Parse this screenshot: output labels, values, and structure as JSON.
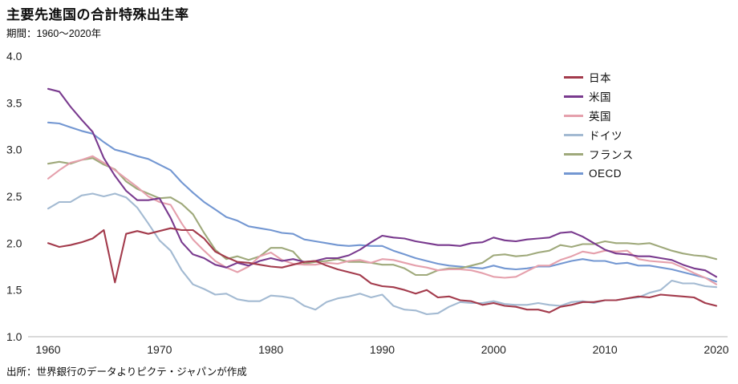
{
  "header": {
    "title": "主要先進国の合計特殊出生率",
    "subtitle": "期間：1960〜2020年"
  },
  "footer": {
    "source": "出所：世界銀行のデータよりピクテ・ジャパンが作成"
  },
  "chart_data": {
    "type": "line",
    "title": "主要先進国の合計特殊出生率",
    "period_label": "期間：1960〜2020年",
    "xlim": [
      1960,
      2020
    ],
    "ylim": [
      1.0,
      4.0
    ],
    "x_ticks": [
      1960,
      1970,
      1980,
      1990,
      2000,
      2010,
      2020
    ],
    "y_ticks": [
      1.0,
      1.5,
      2.0,
      2.5,
      3.0,
      3.5,
      4.0
    ],
    "grid": false,
    "legend_position": "top-right",
    "x": [
      1960,
      1961,
      1962,
      1963,
      1964,
      1965,
      1966,
      1967,
      1968,
      1969,
      1970,
      1971,
      1972,
      1973,
      1974,
      1975,
      1976,
      1977,
      1978,
      1979,
      1980,
      1981,
      1982,
      1983,
      1984,
      1985,
      1986,
      1987,
      1988,
      1989,
      1990,
      1991,
      1992,
      1993,
      1994,
      1995,
      1996,
      1997,
      1998,
      1999,
      2000,
      2001,
      2002,
      2003,
      2004,
      2005,
      2006,
      2007,
      2008,
      2009,
      2010,
      2011,
      2012,
      2013,
      2014,
      2015,
      2016,
      2017,
      2018,
      2019,
      2020
    ],
    "series": [
      {
        "key": "japan",
        "name": "日本",
        "color": "#a33b4c",
        "values": [
          2.0,
          1.96,
          1.98,
          2.01,
          2.05,
          2.14,
          1.58,
          2.1,
          2.13,
          2.1,
          2.13,
          2.16,
          2.14,
          2.14,
          2.05,
          1.91,
          1.85,
          1.8,
          1.79,
          1.77,
          1.75,
          1.74,
          1.77,
          1.8,
          1.81,
          1.76,
          1.72,
          1.69,
          1.66,
          1.57,
          1.54,
          1.53,
          1.5,
          1.46,
          1.5,
          1.42,
          1.43,
          1.39,
          1.38,
          1.34,
          1.36,
          1.33,
          1.32,
          1.29,
          1.29,
          1.26,
          1.32,
          1.34,
          1.37,
          1.37,
          1.39,
          1.39,
          1.41,
          1.43,
          1.42,
          1.45,
          1.44,
          1.43,
          1.42,
          1.36,
          1.33
        ]
      },
      {
        "key": "usa",
        "name": "米国",
        "color": "#793a8e",
        "values": [
          3.65,
          3.62,
          3.46,
          3.32,
          3.19,
          2.91,
          2.72,
          2.56,
          2.46,
          2.46,
          2.48,
          2.27,
          2.01,
          1.88,
          1.84,
          1.77,
          1.74,
          1.79,
          1.76,
          1.81,
          1.84,
          1.81,
          1.83,
          1.8,
          1.81,
          1.84,
          1.84,
          1.87,
          1.93,
          2.01,
          2.08,
          2.06,
          2.05,
          2.02,
          2.0,
          1.98,
          1.98,
          1.97,
          2.0,
          2.01,
          2.06,
          2.03,
          2.02,
          2.04,
          2.05,
          2.06,
          2.11,
          2.12,
          2.07,
          2.0,
          1.93,
          1.89,
          1.88,
          1.86,
          1.86,
          1.84,
          1.82,
          1.77,
          1.73,
          1.71,
          1.64
        ]
      },
      {
        "key": "uk",
        "name": "英国",
        "color": "#e5a0ac",
        "values": [
          2.69,
          2.78,
          2.86,
          2.89,
          2.93,
          2.86,
          2.78,
          2.69,
          2.6,
          2.5,
          2.44,
          2.41,
          2.21,
          2.04,
          1.92,
          1.81,
          1.74,
          1.69,
          1.75,
          1.86,
          1.9,
          1.82,
          1.78,
          1.77,
          1.77,
          1.79,
          1.78,
          1.81,
          1.82,
          1.79,
          1.83,
          1.82,
          1.79,
          1.76,
          1.74,
          1.71,
          1.72,
          1.72,
          1.71,
          1.68,
          1.64,
          1.63,
          1.64,
          1.7,
          1.76,
          1.76,
          1.82,
          1.86,
          1.91,
          1.89,
          1.92,
          1.91,
          1.92,
          1.83,
          1.81,
          1.8,
          1.79,
          1.74,
          1.68,
          1.63,
          1.56
        ]
      },
      {
        "key": "germany",
        "name": "ドイツ",
        "color": "#a3bad2",
        "values": [
          2.37,
          2.44,
          2.44,
          2.51,
          2.53,
          2.5,
          2.53,
          2.49,
          2.38,
          2.21,
          2.03,
          1.92,
          1.71,
          1.56,
          1.51,
          1.45,
          1.46,
          1.4,
          1.38,
          1.38,
          1.44,
          1.43,
          1.41,
          1.33,
          1.29,
          1.37,
          1.41,
          1.43,
          1.46,
          1.42,
          1.45,
          1.33,
          1.29,
          1.28,
          1.24,
          1.25,
          1.32,
          1.37,
          1.36,
          1.36,
          1.38,
          1.35,
          1.34,
          1.34,
          1.36,
          1.34,
          1.33,
          1.37,
          1.38,
          1.36,
          1.39,
          1.39,
          1.41,
          1.42,
          1.47,
          1.5,
          1.6,
          1.57,
          1.57,
          1.54,
          1.53
        ]
      },
      {
        "key": "france",
        "name": "フランス",
        "color": "#9fa97b",
        "values": [
          2.85,
          2.87,
          2.85,
          2.89,
          2.91,
          2.84,
          2.79,
          2.66,
          2.58,
          2.53,
          2.48,
          2.49,
          2.42,
          2.31,
          2.11,
          1.93,
          1.83,
          1.86,
          1.82,
          1.86,
          1.95,
          1.95,
          1.91,
          1.78,
          1.8,
          1.81,
          1.83,
          1.8,
          1.8,
          1.79,
          1.77,
          1.77,
          1.73,
          1.66,
          1.66,
          1.71,
          1.73,
          1.73,
          1.76,
          1.79,
          1.87,
          1.88,
          1.86,
          1.87,
          1.9,
          1.92,
          1.98,
          1.96,
          1.99,
          1.99,
          2.02,
          2.0,
          2.0,
          1.99,
          2.0,
          1.96,
          1.92,
          1.89,
          1.87,
          1.86,
          1.83
        ]
      },
      {
        "key": "oecd",
        "name": "OECD",
        "color": "#7397d2",
        "values": [
          3.29,
          3.28,
          3.24,
          3.2,
          3.17,
          3.08,
          3.0,
          2.97,
          2.93,
          2.9,
          2.84,
          2.78,
          2.65,
          2.54,
          2.44,
          2.36,
          2.28,
          2.24,
          2.18,
          2.16,
          2.14,
          2.11,
          2.1,
          2.04,
          2.02,
          2.0,
          1.98,
          1.97,
          1.98,
          1.97,
          1.97,
          1.92,
          1.88,
          1.84,
          1.81,
          1.78,
          1.76,
          1.75,
          1.74,
          1.73,
          1.76,
          1.73,
          1.72,
          1.73,
          1.75,
          1.75,
          1.78,
          1.81,
          1.83,
          1.81,
          1.81,
          1.78,
          1.79,
          1.76,
          1.76,
          1.74,
          1.72,
          1.69,
          1.66,
          1.63,
          1.59
        ]
      }
    ]
  }
}
